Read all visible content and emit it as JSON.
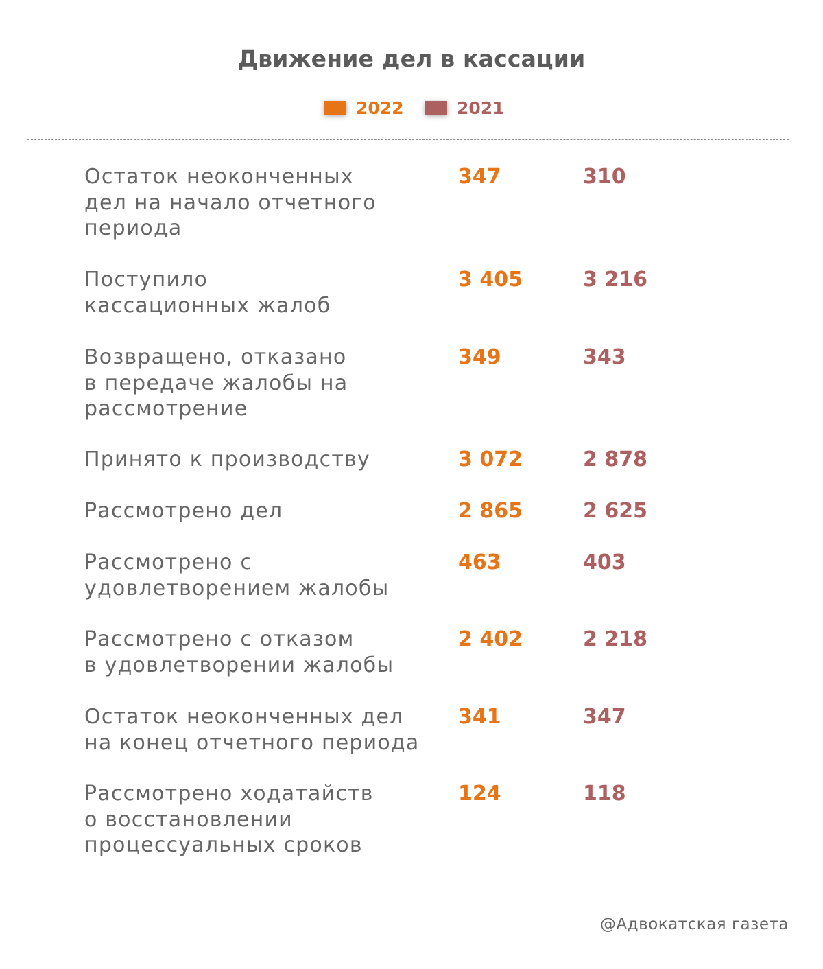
{
  "title": "Движение дел в кассации",
  "colors": {
    "series_2022": "#e57516",
    "series_2021": "#ad6060",
    "label_text": "#666666",
    "title_text": "#5b5b5b"
  },
  "chart_data": {
    "type": "table",
    "title": "Движение дел в кассации",
    "columns": [
      "2022",
      "2021"
    ],
    "series": [
      {
        "name": "2022",
        "values": [
          347,
          3405,
          349,
          3072,
          2865,
          463,
          2402,
          341,
          124
        ]
      },
      {
        "name": "2021",
        "values": [
          310,
          3216,
          343,
          2878,
          2625,
          403,
          2218,
          347,
          118
        ]
      }
    ],
    "rows": [
      {
        "label": "Остаток неоконченных\nдел на начало отчетного\nпериода",
        "v2022": "347",
        "v2021": "310"
      },
      {
        "label": "Поступило\nкассационных жалоб",
        "v2022": "3 405",
        "v2021": "3 216"
      },
      {
        "label": "Возвращено, отказано\nв передаче жалобы на\nрассмотрение",
        "v2022": "349",
        "v2021": "343"
      },
      {
        "label": "Принято к производству",
        "v2022": "3 072",
        "v2021": "2 878"
      },
      {
        "label": "Рассмотрено дел",
        "v2022": "2 865",
        "v2021": "2 625"
      },
      {
        "label": "Рассмотрено с\nудовлетворением жалобы",
        "v2022": "463",
        "v2021": "403"
      },
      {
        "label": "Рассмотрено с отказом\nв удовлетворении жалобы",
        "v2022": "2 402",
        "v2021": "2 218"
      },
      {
        "label": "Остаток неоконченных дел\nна конец отчетного периода",
        "v2022": "341",
        "v2021": "347"
      },
      {
        "label": "Рассмотрено ходатайств\nо восстановлении\nпроцессуальных сроков",
        "v2022": "124",
        "v2021": "118"
      }
    ]
  },
  "legend": [
    {
      "label": "2022",
      "color": "#e57516"
    },
    {
      "label": "2021",
      "color": "#ad6060"
    }
  ],
  "source": "@Адвокатская газета"
}
